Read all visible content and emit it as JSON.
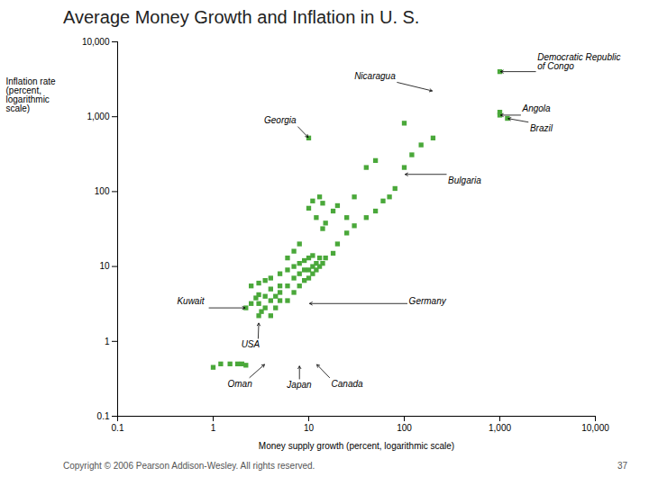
{
  "chart_data": {
    "type": "scatter",
    "title": "Average Money Growth and Inflation in U. S.",
    "xlabel": "Money supply growth (percent, logarithmic scale)",
    "ylabel": "Inflation rate\n(percent,\nlogarithmic\nscale)",
    "log": true,
    "grid": false,
    "marker": "square",
    "color": "#4aA83a",
    "xlim": [
      0.1,
      10000
    ],
    "ylim": [
      0.1,
      10000
    ],
    "xticks": [
      0.1,
      1,
      10,
      100,
      {
        "value": 1000,
        "label": "1,000"
      },
      {
        "value": 10000,
        "label": "10,000"
      }
    ],
    "yticks": [
      0.1,
      1,
      10,
      100,
      {
        "value": 1000,
        "label": "1,000"
      },
      {
        "value": 10000,
        "label": "10,000"
      }
    ],
    "x": [
      1.0,
      1.2,
      1.5,
      1.8,
      2.0,
      2.2,
      2.2,
      2.5,
      2.5,
      2.8,
      3.0,
      3.0,
      3.0,
      3.0,
      3.2,
      3.5,
      3.5,
      3.5,
      4.0,
      4.0,
      4.0,
      4.0,
      4.5,
      4.5,
      5.0,
      5.0,
      5.0,
      5.0,
      6.0,
      6.0,
      6.0,
      6.0,
      7.0,
      7.0,
      7.0,
      7.0,
      8.0,
      8.0,
      8.0,
      8.0,
      9.0,
      9.0,
      9.0,
      10.0,
      10.0,
      10.0,
      10.0,
      11.0,
      11.0,
      11.0,
      11.0,
      12.0,
      12.0,
      12.0,
      13.0,
      13.0,
      13.0,
      14.0,
      14.0,
      14.0,
      15.0,
      15.0,
      18.0,
      18.0,
      20.0,
      20.0,
      25.0,
      25.0,
      30.0,
      30.0,
      40.0,
      40.0,
      50.0,
      50.0,
      60.0,
      70.0,
      80.0,
      100.0,
      100.0,
      120.0,
      150.0,
      200.0,
      1000.0,
      1000.0,
      1200.0,
      10.0,
      1000.0
    ],
    "values": [
      0.45,
      0.5,
      0.5,
      0.5,
      0.5,
      0.48,
      2.8,
      3.2,
      5.5,
      3.8,
      2.2,
      3.2,
      4.2,
      6.0,
      2.5,
      2.8,
      4.0,
      6.5,
      2.2,
      3.5,
      5.0,
      7.0,
      2.8,
      4.0,
      3.5,
      4.5,
      5.5,
      8.0,
      3.5,
      5.5,
      9.0,
      13.0,
      4.5,
      7.0,
      10.0,
      16.0,
      5.5,
      8.0,
      11.0,
      20.0,
      6.5,
      9.0,
      12.0,
      7.0,
      9.0,
      13.0,
      60.0,
      8.0,
      10.0,
      14.0,
      75.0,
      9.0,
      11.0,
      45.0,
      10.0,
      13.0,
      85.0,
      11.0,
      32.0,
      70.0,
      13.0,
      38.0,
      15.0,
      55.0,
      20.0,
      65.0,
      28.0,
      45.0,
      35.0,
      85.0,
      45.0,
      210.0,
      55.0,
      260.0,
      75.0,
      85.0,
      110.0,
      210.0,
      820.0,
      310.0,
      420.0,
      520.0,
      1050.0,
      1150.0,
      950.0,
      520.0,
      4000.0
    ],
    "annotations": [
      {
        "text": "Kuwait",
        "x": 2.2,
        "y": 2.8
      },
      {
        "text": "USA",
        "x": 3.0,
        "y": 1.8
      },
      {
        "text": "Oman",
        "x": 3.5,
        "y": 0.5
      },
      {
        "text": "Japan",
        "x": 8.0,
        "y": 0.48
      },
      {
        "text": "Canada",
        "x": 12.0,
        "y": 0.5
      },
      {
        "text": "Germany",
        "x": 10.0,
        "y": 3.2
      },
      {
        "text": "Bulgaria",
        "x": 100.0,
        "y": 170.0
      },
      {
        "text": "Georgia",
        "x": 10.0,
        "y": 520.0
      },
      {
        "text": "Nicaragua",
        "x": 200.0,
        "y": 2200.0
      },
      {
        "text": "Angola",
        "x": 1000.0,
        "y": 1050.0
      },
      {
        "text": "Brazil",
        "x": 1200.0,
        "y": 950.0
      },
      {
        "text": "Democratic Republic\nof Congo",
        "x": 1000.0,
        "y": 4000.0
      }
    ],
    "footer": [
      "Copyright © 2006 Pearson Addison-Wesley. All rights reserved.",
      "37"
    ]
  }
}
